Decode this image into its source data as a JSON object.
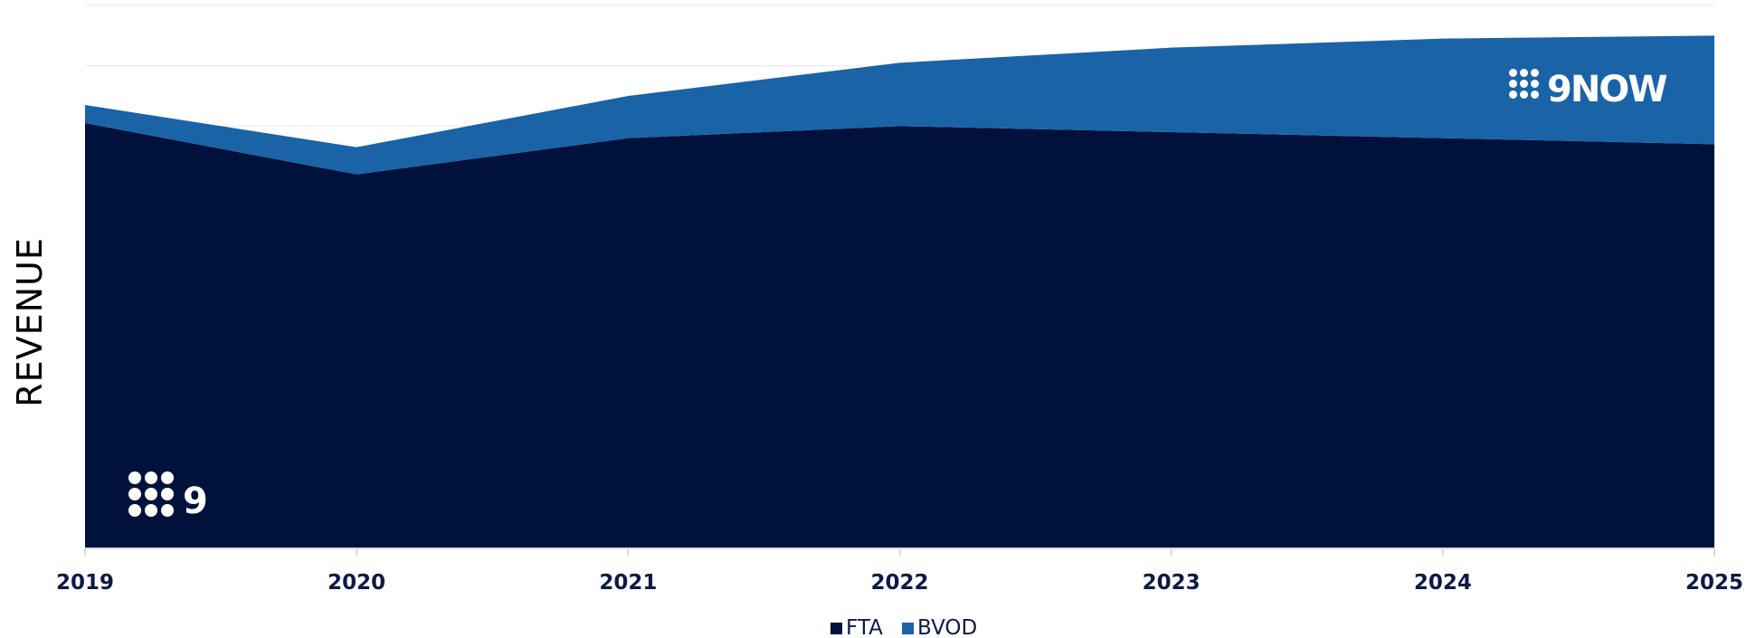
{
  "chart_data": {
    "type": "area",
    "stacked": true,
    "title": "",
    "xlabel": "",
    "ylabel": "REVENUE",
    "x": [
      "2019",
      "2020",
      "2021",
      "2022",
      "2023",
      "2024",
      "2025"
    ],
    "ylim": [
      0,
      90
    ],
    "grid": true,
    "legend": "bottom-center",
    "series": [
      {
        "name": "FTA",
        "color": "#00123b",
        "values": [
          70.5,
          62,
          68,
          70,
          69,
          68,
          67
        ]
      },
      {
        "name": "BVOD",
        "color": "#1a63a6",
        "values": [
          3,
          4.5,
          7,
          10.5,
          14,
          16.5,
          18
        ]
      }
    ],
    "logos": {
      "network": "9",
      "platform": "9NOW"
    }
  }
}
